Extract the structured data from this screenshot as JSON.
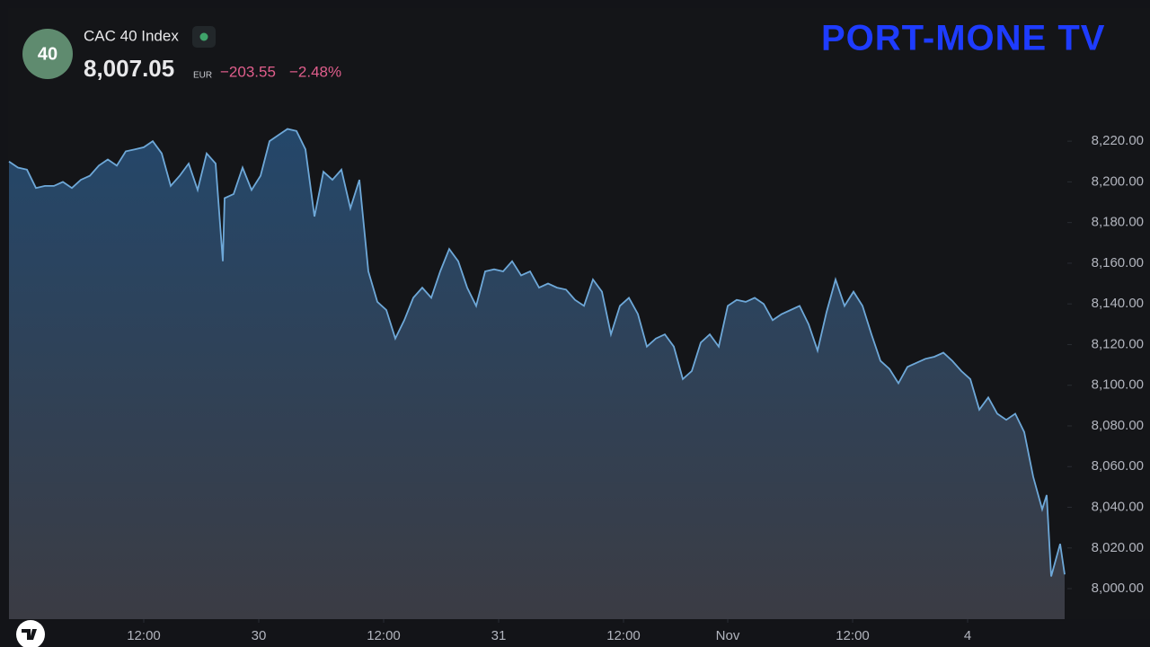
{
  "header": {
    "badge": "40",
    "name": "CAC 40 Index",
    "price": "8,007.05",
    "currency": "EUR",
    "change": "−203.55",
    "change_pct": "−2.48%"
  },
  "logo": "PORT-MONE TV",
  "chart_data": {
    "type": "area",
    "color": "#6ea8d8",
    "x": [
      0,
      1,
      2,
      3,
      4,
      5,
      6,
      7,
      8,
      9,
      10,
      11,
      12,
      13,
      14,
      15,
      16,
      17,
      18,
      19,
      20,
      21,
      22,
      23,
      23.8,
      24,
      25,
      26,
      27,
      28,
      29,
      30,
      31,
      32,
      33,
      34,
      35,
      36,
      37,
      38,
      39,
      40,
      41,
      42,
      43,
      44,
      45,
      46,
      47,
      48,
      49,
      50,
      51,
      52,
      53,
      54,
      55,
      56,
      57,
      58,
      59,
      60,
      61,
      62,
      63,
      64,
      65,
      66,
      67,
      68,
      69,
      70,
      71,
      72,
      73,
      74,
      75,
      76,
      77,
      78,
      79,
      80,
      81,
      82,
      83,
      84,
      85,
      86,
      87,
      88,
      89,
      90,
      91,
      92,
      93,
      94,
      95,
      96,
      97,
      98,
      99,
      100,
      101,
      102,
      103,
      104,
      105,
      106,
      107,
      108,
      109,
      110,
      111,
      112,
      113,
      114,
      115,
      115.5,
      116,
      117,
      117.5
    ],
    "values": [
      8210,
      8207,
      8206,
      8197,
      8198,
      8198,
      8200,
      8197,
      8201,
      8203,
      8208,
      8211,
      8208,
      8215,
      8216,
      8217,
      8220,
      8214,
      8198,
      8203,
      8209,
      8196,
      8214,
      8209,
      8161,
      8192,
      8194,
      8207,
      8196,
      8203,
      8220,
      8223,
      8226,
      8225,
      8216,
      8183,
      8205,
      8201,
      8206,
      8187,
      8201,
      8156,
      8141,
      8137,
      8123,
      8132,
      8143,
      8148,
      8143,
      8156,
      8167,
      8161,
      8148,
      8139,
      8156,
      8157,
      8156,
      8161,
      8154,
      8156,
      8148,
      8150,
      8148,
      8147,
      8142,
      8139,
      8152,
      8146,
      8125,
      8139,
      8143,
      8135,
      8119,
      8123,
      8125,
      8119,
      8103,
      8107,
      8121,
      8125,
      8119,
      8139,
      8142,
      8141,
      8143,
      8140,
      8132,
      8135,
      8137,
      8139,
      8130,
      8117,
      8136,
      8152,
      8139,
      8146,
      8139,
      8125,
      8112,
      8108,
      8101,
      8109,
      8111,
      8113,
      8114,
      8116,
      8112,
      8107,
      8103,
      8088,
      8094,
      8086,
      8083,
      8086,
      8077,
      8055,
      8039,
      8046,
      8006,
      8022,
      8007
    ],
    "xlim": [
      0,
      117.5
    ],
    "xticks": [
      {
        "value": 15,
        "label": "12:00"
      },
      {
        "value": 27.8,
        "label": "30"
      },
      {
        "value": 41.7,
        "label": "12:00"
      },
      {
        "value": 54.5,
        "label": "31"
      },
      {
        "value": 68.4,
        "label": "12:00"
      },
      {
        "value": 80,
        "label": "Nov"
      },
      {
        "value": 93.9,
        "label": "12:00"
      },
      {
        "value": 106.7,
        "label": "4"
      }
    ],
    "ylim": [
      7985,
      8285
    ],
    "yticks": [
      {
        "value": 8000,
        "label": "8,000.00"
      },
      {
        "value": 8020,
        "label": "8,020.00"
      },
      {
        "value": 8040,
        "label": "8,040.00"
      },
      {
        "value": 8060,
        "label": "8,060.00"
      },
      {
        "value": 8080,
        "label": "8,080.00"
      },
      {
        "value": 8100,
        "label": "8,100.00"
      },
      {
        "value": 8120,
        "label": "8,120.00"
      },
      {
        "value": 8140,
        "label": "8,140.00"
      },
      {
        "value": 8160,
        "label": "8,160.00"
      },
      {
        "value": 8180,
        "label": "8,180.00"
      },
      {
        "value": 8200,
        "label": "8,200.00"
      },
      {
        "value": 8220,
        "label": "8,220.00"
      }
    ]
  }
}
